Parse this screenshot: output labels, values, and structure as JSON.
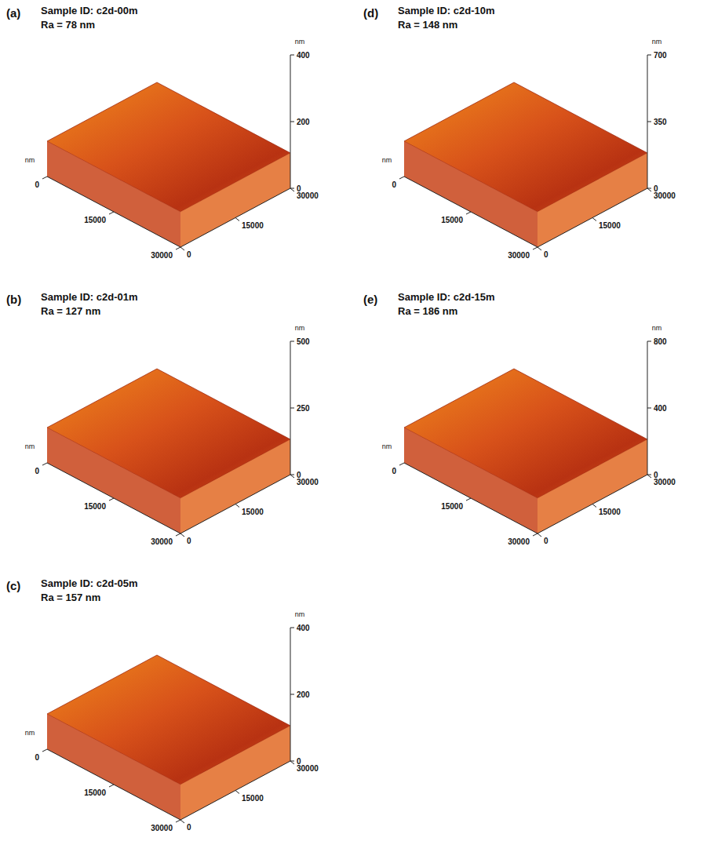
{
  "chart_data": [
    {
      "type": "surface",
      "panel": "(a)",
      "title": "Sample ID: c2d-00m",
      "subtitle": "Ra = 78 nm",
      "xlabel": "nm",
      "zlabel": "nm",
      "xlim": [
        0,
        30000
      ],
      "xticks": [
        0,
        15000,
        30000
      ],
      "ylim": [
        0,
        30000
      ],
      "yticks": [
        0,
        15000,
        30000
      ],
      "zlim": [
        0,
        400
      ],
      "zticks": [
        0,
        200,
        400
      ]
    },
    {
      "type": "surface",
      "panel": "(b)",
      "title": "Sample ID: c2d-01m",
      "subtitle": "Ra = 127 nm",
      "xlabel": "nm",
      "zlabel": "nm",
      "xlim": [
        0,
        30000
      ],
      "xticks": [
        0,
        15000,
        30000
      ],
      "ylim": [
        0,
        30000
      ],
      "yticks": [
        0,
        15000,
        30000
      ],
      "zlim": [
        0,
        500
      ],
      "zticks": [
        0,
        250,
        500
      ]
    },
    {
      "type": "surface",
      "panel": "(c)",
      "title": "Sample ID: c2d-05m",
      "subtitle": "Ra = 157 nm",
      "xlabel": "nm",
      "zlabel": "nm",
      "xlim": [
        0,
        30000
      ],
      "xticks": [
        0,
        15000,
        30000
      ],
      "ylim": [
        0,
        30000
      ],
      "yticks": [
        0,
        15000,
        30000
      ],
      "zlim": [
        0,
        400
      ],
      "zticks": [
        0,
        200,
        400
      ]
    },
    {
      "type": "surface",
      "panel": "(d)",
      "title": "Sample ID: c2d-10m",
      "subtitle": "Ra = 148 nm",
      "xlabel": "nm",
      "zlabel": "nm",
      "xlim": [
        0,
        30000
      ],
      "xticks": [
        0,
        15000,
        30000
      ],
      "ylim": [
        0,
        30000
      ],
      "yticks": [
        0,
        15000,
        30000
      ],
      "zlim": [
        0,
        700
      ],
      "zticks": [
        0,
        350,
        700
      ]
    },
    {
      "type": "surface",
      "panel": "(e)",
      "title": "Sample ID: c2d-15m",
      "subtitle": "Ra = 186 nm",
      "xlabel": "nm",
      "zlabel": "nm",
      "xlim": [
        0,
        30000
      ],
      "xticks": [
        0,
        15000,
        30000
      ],
      "ylim": [
        0,
        30000
      ],
      "yticks": [
        0,
        15000,
        30000
      ],
      "zlim": [
        0,
        800
      ],
      "zticks": [
        0,
        400,
        800
      ]
    }
  ]
}
